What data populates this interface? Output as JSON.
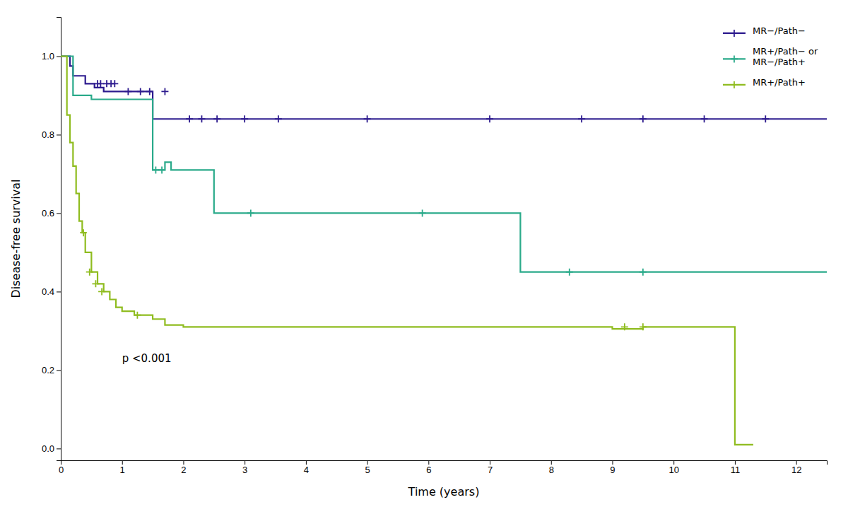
{
  "chart_data": {
    "type": "line",
    "title": "",
    "xlabel": "Time (years)",
    "ylabel": "Disease-free survival",
    "xlim": [
      0,
      12.5
    ],
    "ylim": [
      -0.03,
      1.1
    ],
    "xticks": [
      0,
      1,
      2,
      3,
      4,
      5,
      6,
      7,
      8,
      9,
      10,
      11,
      12
    ],
    "yticks": [
      {
        "value": 0.0,
        "label": "0.0"
      },
      0.2,
      0.4,
      0.6,
      0.8,
      {
        "value": 1.0,
        "label": "1.0"
      }
    ],
    "grid": false,
    "legend": "upper right",
    "annotations": [
      {
        "text": "p <0.001",
        "x": 1.0,
        "y": 0.22
      }
    ],
    "series": [
      {
        "name": "MR−/Path−",
        "color": "#2d1b8e",
        "type": "line",
        "x": [
          0.0,
          0.15,
          0.15,
          0.2,
          0.2,
          0.4,
          0.4,
          0.55,
          0.55,
          0.7,
          0.7,
          1.0,
          1.0,
          1.5,
          1.5,
          12.5
        ],
        "values": [
          1.0,
          1.0,
          0.975,
          0.975,
          0.95,
          0.95,
          0.93,
          0.93,
          0.92,
          0.92,
          0.91,
          0.91,
          0.91,
          0.91,
          0.84,
          0.84
        ]
      },
      {
        "name": "MR+/Path− or\nMR−/Path+",
        "color": "#2aaa8a",
        "type": "line",
        "x": [
          0.0,
          0.2,
          0.2,
          0.5,
          0.5,
          1.5,
          1.5,
          1.7,
          1.7,
          1.8,
          1.8,
          2.5,
          2.5,
          7.5,
          7.5,
          12.5
        ],
        "values": [
          1.0,
          1.0,
          0.9,
          0.9,
          0.89,
          0.89,
          0.71,
          0.71,
          0.73,
          0.73,
          0.71,
          0.71,
          0.6,
          0.6,
          0.45,
          0.45
        ]
      },
      {
        "name": "MR+/Path+",
        "color": "#8fbc1f",
        "type": "line",
        "x": [
          0.0,
          0.1,
          0.1,
          0.15,
          0.15,
          0.2,
          0.2,
          0.25,
          0.25,
          0.3,
          0.3,
          0.35,
          0.35,
          0.4,
          0.4,
          0.5,
          0.5,
          0.6,
          0.6,
          0.7,
          0.7,
          0.8,
          0.8,
          0.9,
          0.9,
          1.0,
          1.0,
          1.2,
          1.2,
          1.5,
          1.5,
          1.7,
          1.7,
          2.0,
          2.0,
          9.0,
          9.0,
          9.5,
          9.5,
          11.0,
          11.0,
          11.3
        ],
        "values": [
          1.0,
          1.0,
          0.85,
          0.85,
          0.78,
          0.78,
          0.72,
          0.72,
          0.65,
          0.65,
          0.58,
          0.58,
          0.55,
          0.55,
          0.5,
          0.5,
          0.45,
          0.45,
          0.42,
          0.42,
          0.4,
          0.4,
          0.38,
          0.38,
          0.36,
          0.36,
          0.35,
          0.35,
          0.34,
          0.34,
          0.33,
          0.33,
          0.315,
          0.315,
          0.31,
          0.31,
          0.305,
          0.305,
          0.31,
          0.31,
          0.01,
          0.01
        ]
      },
      {
        "color": "#2d1b8e",
        "type": "scatter",
        "marker": "plus",
        "x": [
          0.6,
          0.65,
          0.75,
          0.82,
          0.88,
          1.1,
          1.3,
          1.45,
          1.7,
          2.1,
          2.3,
          2.55,
          3.0,
          3.55,
          5.0,
          7.0,
          8.5,
          9.5,
          10.5,
          11.5
        ],
        "values": [
          0.93,
          0.93,
          0.93,
          0.93,
          0.93,
          0.91,
          0.91,
          0.91,
          0.91,
          0.84,
          0.84,
          0.84,
          0.84,
          0.84,
          0.84,
          0.84,
          0.84,
          0.84,
          0.84,
          0.84
        ]
      },
      {
        "color": "#2aaa8a",
        "type": "scatter",
        "marker": "plus",
        "x": [
          1.55,
          1.65,
          3.1,
          5.9,
          8.3,
          9.5
        ],
        "values": [
          0.71,
          0.71,
          0.6,
          0.6,
          0.45,
          0.45
        ]
      },
      {
        "color": "#8fbc1f",
        "type": "scatter",
        "marker": "plus",
        "x": [
          0.37,
          0.47,
          0.57,
          0.67,
          1.25,
          9.2,
          9.5
        ],
        "values": [
          0.55,
          0.45,
          0.42,
          0.4,
          0.34,
          0.31,
          0.31
        ]
      }
    ]
  }
}
